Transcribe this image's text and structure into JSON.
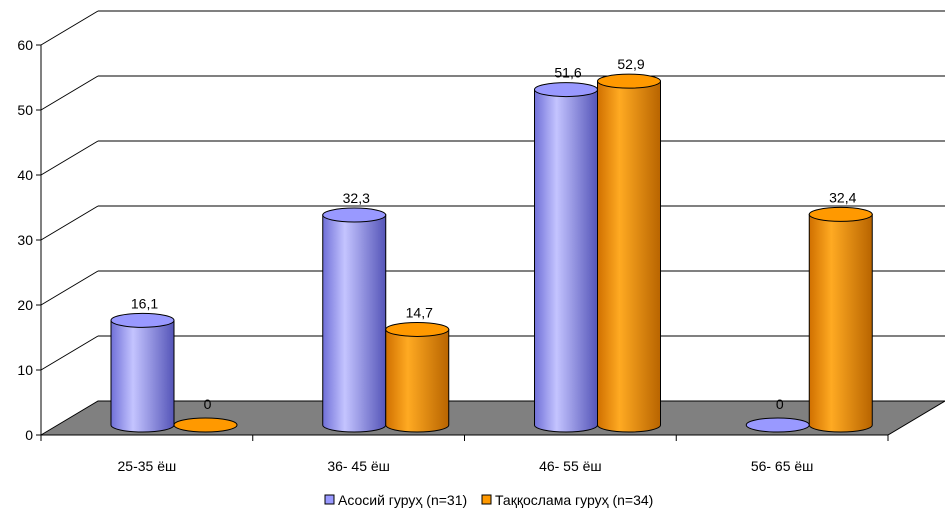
{
  "chart_data": {
    "type": "bar",
    "style": "3d-cylinder",
    "categories": [
      "25-35 ёш",
      "36- 45 ёш",
      "46- 55 ёш",
      "56- 65 ёш"
    ],
    "series": [
      {
        "name": "Асосий гуруҳ (n=31)",
        "values": [
          16.1,
          32.3,
          51.6,
          0
        ],
        "labels": [
          "16,1",
          "32,3",
          "51,6",
          "0"
        ],
        "color": "#9999ff"
      },
      {
        "name": "Таққослама гуруҳ (n=34)",
        "values": [
          0,
          14.7,
          52.9,
          32.4
        ],
        "labels": [
          "0",
          "14,7",
          "52,9",
          "32,4"
        ],
        "color": "#ff9900"
      }
    ],
    "y_ticks": [
      "0",
      "10",
      "20",
      "30",
      "40",
      "50",
      "60"
    ],
    "ylim": [
      0,
      60
    ],
    "grid": true,
    "floor_color": "#808080",
    "legend_position": "bottom"
  }
}
